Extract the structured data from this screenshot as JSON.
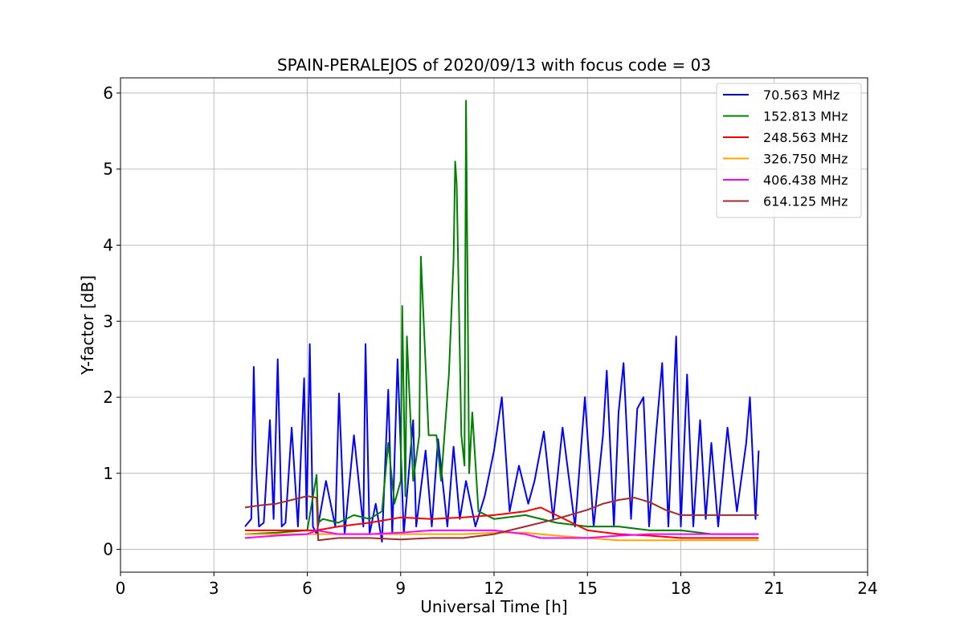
{
  "chart_data": {
    "type": "line",
    "title": "SPAIN-PERALEJOS of 2020/09/13 with focus code = 03",
    "xlabel": "Universal Time [h]",
    "ylabel": "Y-factor [dB]",
    "xlim": [
      0,
      24
    ],
    "ylim": [
      -0.3,
      6.2
    ],
    "xticks": [
      0,
      3,
      6,
      9,
      12,
      15,
      18,
      21,
      24
    ],
    "yticks": [
      0,
      1,
      2,
      3,
      4,
      5,
      6
    ],
    "grid": true,
    "legend_position": "top-right",
    "series": [
      {
        "name": " 70.563 MHz",
        "color": "#0000ff",
        "x": [
          4.0,
          4.2,
          4.28,
          4.35,
          4.45,
          4.6,
          4.8,
          4.92,
          5.05,
          5.18,
          5.3,
          5.5,
          5.7,
          5.9,
          5.98,
          6.08,
          6.18,
          6.3,
          6.6,
          6.9,
          7.02,
          7.2,
          7.5,
          7.8,
          7.87,
          8.0,
          8.2,
          8.4,
          8.6,
          8.73,
          8.9,
          9.1,
          9.4,
          9.5,
          9.8,
          10.0,
          10.2,
          10.5,
          10.7,
          10.9,
          11.1,
          11.4,
          11.7,
          12.0,
          12.25,
          12.5,
          12.8,
          13.1,
          13.3,
          13.6,
          13.9,
          14.2,
          14.6,
          14.92,
          15.2,
          15.5,
          15.62,
          15.85,
          16.0,
          16.16,
          16.4,
          16.6,
          16.8,
          16.98,
          17.2,
          17.4,
          17.6,
          17.85,
          18.0,
          18.2,
          18.4,
          18.62,
          18.8,
          18.98,
          19.2,
          19.5,
          19.8,
          20.1,
          20.22,
          20.4,
          20.5
        ],
        "y": [
          0.3,
          0.4,
          2.4,
          1.1,
          0.3,
          0.35,
          1.7,
          0.4,
          2.5,
          0.3,
          0.35,
          1.6,
          0.3,
          2.25,
          0.4,
          2.7,
          0.3,
          0.2,
          0.9,
          0.3,
          2.05,
          0.2,
          1.5,
          0.3,
          2.7,
          0.2,
          0.6,
          0.1,
          2.1,
          0.2,
          2.5,
          0.2,
          1.7,
          0.3,
          1.3,
          0.3,
          1.45,
          0.3,
          1.35,
          0.4,
          0.9,
          0.3,
          0.7,
          1.3,
          2.0,
          0.5,
          1.1,
          0.6,
          0.9,
          1.55,
          0.4,
          1.6,
          0.3,
          2.0,
          0.3,
          1.5,
          2.35,
          0.3,
          1.8,
          2.45,
          0.4,
          1.85,
          2.0,
          0.3,
          1.5,
          2.45,
          0.3,
          2.8,
          0.3,
          2.3,
          0.3,
          1.7,
          0.4,
          1.4,
          0.3,
          1.6,
          0.5,
          1.4,
          2.0,
          0.4,
          1.3
        ]
      },
      {
        "name": "152.813 MHz",
        "color": "#008000",
        "x": [
          4.0,
          5.0,
          6.0,
          6.3,
          6.35,
          6.5,
          7.0,
          7.5,
          8.0,
          8.4,
          8.6,
          8.8,
          9.0,
          9.05,
          9.15,
          9.2,
          9.4,
          9.6,
          9.65,
          9.9,
          10.15,
          10.3,
          10.55,
          10.7,
          10.75,
          10.8,
          10.85,
          10.95,
          11.05,
          11.1,
          11.2,
          11.3,
          11.5,
          12.0,
          13.0,
          14.0,
          15.0,
          16.0,
          17.0,
          18.0,
          19.0,
          20.0,
          20.5
        ],
        "y": [
          0.2,
          0.22,
          0.25,
          0.98,
          0.35,
          0.4,
          0.35,
          0.45,
          0.4,
          0.5,
          1.4,
          0.6,
          0.9,
          3.2,
          0.7,
          2.8,
          0.9,
          1.5,
          3.85,
          1.5,
          1.5,
          0.9,
          2.3,
          3.8,
          5.1,
          4.8,
          3.7,
          1.5,
          1.1,
          5.9,
          1.0,
          1.8,
          0.5,
          0.4,
          0.45,
          0.35,
          0.3,
          0.3,
          0.25,
          0.25,
          0.2,
          0.2,
          0.2
        ]
      },
      {
        "name": "248.563 MHz",
        "color": "#ff0000",
        "x": [
          4.0,
          5.0,
          6.0,
          6.3,
          7.0,
          8.0,
          9.0,
          10.0,
          11.0,
          12.0,
          13.0,
          13.5,
          14.0,
          14.5,
          15.0,
          16.0,
          17.0,
          18.0,
          19.0,
          20.0,
          20.5
        ],
        "y": [
          0.25,
          0.25,
          0.25,
          0.25,
          0.3,
          0.35,
          0.42,
          0.4,
          0.42,
          0.45,
          0.5,
          0.55,
          0.45,
          0.35,
          0.25,
          0.2,
          0.18,
          0.15,
          0.15,
          0.15,
          0.15
        ]
      },
      {
        "name": "326.750 MHz",
        "color": "#ffa500",
        "x": [
          4.0,
          5.0,
          6.0,
          7.0,
          8.0,
          9.0,
          10.0,
          11.0,
          12.0,
          13.0,
          14.0,
          15.0,
          16.0,
          17.0,
          18.0,
          19.0,
          20.0,
          20.5
        ],
        "y": [
          0.2,
          0.2,
          0.2,
          0.2,
          0.2,
          0.2,
          0.2,
          0.2,
          0.22,
          0.22,
          0.18,
          0.15,
          0.12,
          0.12,
          0.12,
          0.12,
          0.12,
          0.12
        ]
      },
      {
        "name": "406.438 MHz",
        "color": "#ff00ff",
        "x": [
          4.0,
          5.0,
          6.0,
          6.3,
          7.0,
          8.0,
          9.0,
          10.0,
          11.0,
          12.0,
          13.0,
          13.5,
          14.0,
          15.0,
          16.0,
          17.0,
          18.0,
          19.0,
          20.0,
          20.5
        ],
        "y": [
          0.15,
          0.18,
          0.2,
          0.25,
          0.2,
          0.2,
          0.22,
          0.25,
          0.25,
          0.25,
          0.2,
          0.15,
          0.15,
          0.15,
          0.18,
          0.2,
          0.2,
          0.2,
          0.2,
          0.2
        ]
      },
      {
        "name": "614.125 MHz",
        "color": "#a52a2a",
        "x": [
          4.0,
          4.5,
          5.0,
          5.5,
          6.0,
          6.3,
          6.35,
          7.0,
          8.0,
          9.0,
          10.0,
          11.0,
          12.0,
          13.0,
          14.0,
          15.0,
          15.5,
          16.0,
          16.5,
          17.0,
          17.5,
          18.0,
          18.5,
          19.0,
          19.5,
          20.0,
          20.5
        ],
        "y": [
          0.55,
          0.58,
          0.6,
          0.65,
          0.7,
          0.68,
          0.12,
          0.15,
          0.15,
          0.13,
          0.15,
          0.15,
          0.2,
          0.3,
          0.4,
          0.52,
          0.6,
          0.65,
          0.68,
          0.62,
          0.52,
          0.45,
          0.45,
          0.45,
          0.45,
          0.45,
          0.45
        ]
      }
    ]
  }
}
